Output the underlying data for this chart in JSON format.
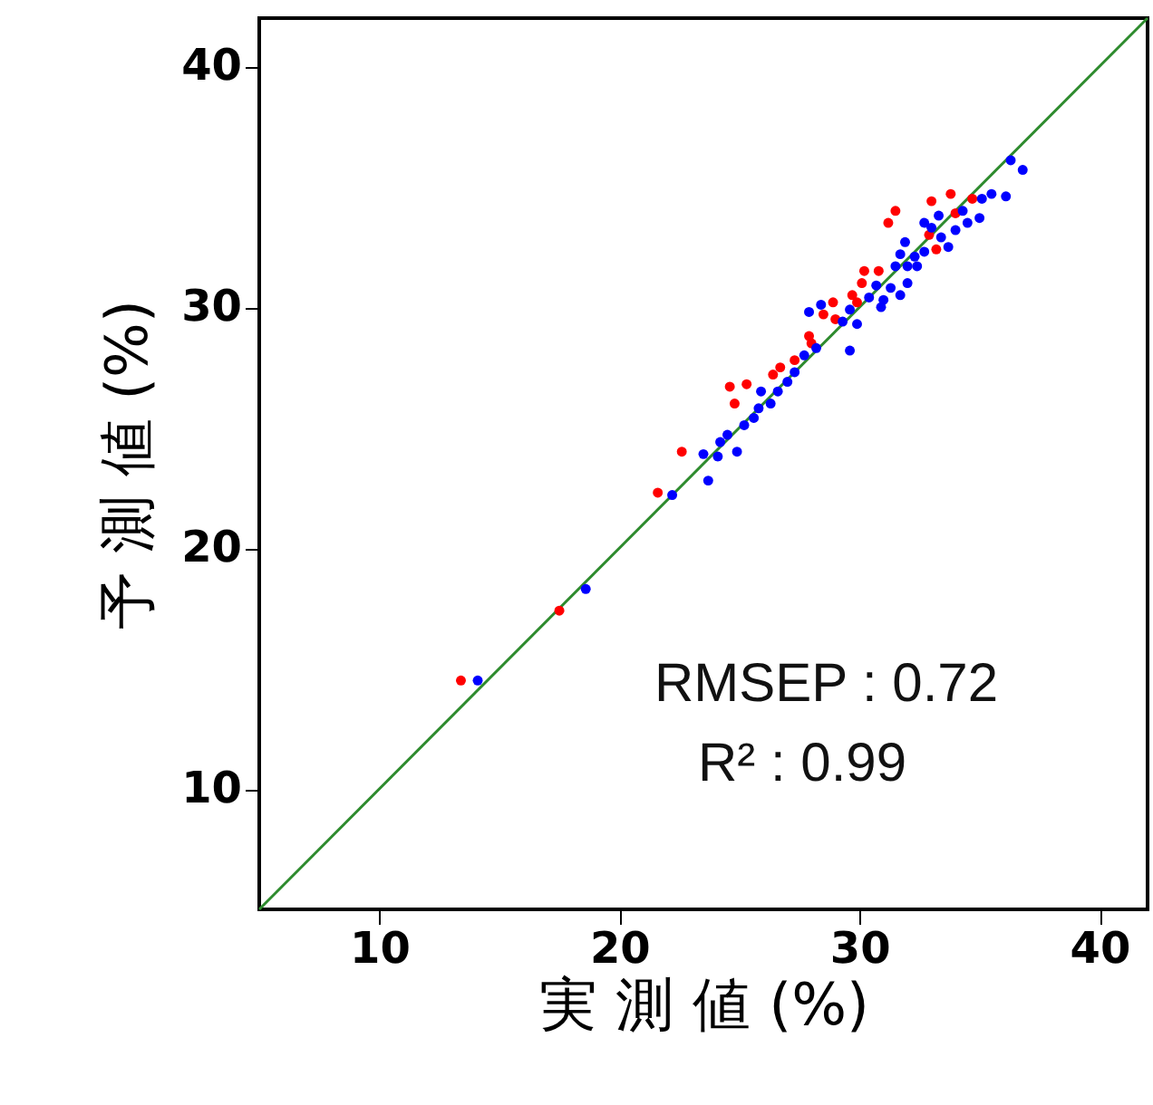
{
  "chart_data": {
    "type": "scatter",
    "xlabel": "実 測 値 (%)",
    "ylabel": "予 測 値 (%)",
    "xlim": [
      5,
      42
    ],
    "ylim": [
      5,
      42
    ],
    "xticks": [
      10,
      20,
      30,
      40
    ],
    "yticks": [
      10,
      20,
      30,
      40
    ],
    "grid": false,
    "marker": "circle",
    "annotations": [
      "RMSEP : 0.72",
      "R² : 0.99"
    ],
    "series": [
      {
        "type": "line",
        "marker": "none",
        "color": "#2e8b2e",
        "x": [
          5,
          42
        ],
        "values": [
          5,
          42
        ]
      },
      {
        "color": "#ff0000",
        "x": [
          13.4,
          17.5,
          21.6,
          22.6,
          24.6,
          24.8,
          25.3,
          26.4,
          26.7,
          27.3,
          27.9,
          28.0,
          28.5,
          28.9,
          29.0,
          29.7,
          29.9,
          30.1,
          30.2,
          30.8,
          31.2,
          31.5,
          32.9,
          33.0,
          33.2,
          33.8,
          34.0,
          34.7
        ],
        "values": [
          14.5,
          17.4,
          22.3,
          24.0,
          26.7,
          26.0,
          26.8,
          27.2,
          27.5,
          27.8,
          28.8,
          28.5,
          29.7,
          30.2,
          29.5,
          30.5,
          30.2,
          31.0,
          31.5,
          31.5,
          33.5,
          34.0,
          33.0,
          34.4,
          32.4,
          34.7,
          33.9,
          34.5
        ]
      },
      {
        "color": "#0000ff",
        "x": [
          14.1,
          18.6,
          22.2,
          23.7,
          23.5,
          24.1,
          24.2,
          24.5,
          24.9,
          25.2,
          25.6,
          25.8,
          25.9,
          26.3,
          26.6,
          27.0,
          27.3,
          27.7,
          28.2,
          27.9,
          28.4,
          29.6,
          29.3,
          29.9,
          29.6,
          30.4,
          30.7,
          30.9,
          31.0,
          31.3,
          31.7,
          31.5,
          31.7,
          31.9,
          32.0,
          32.0,
          32.3,
          32.4,
          32.7,
          32.7,
          33.0,
          33.3,
          33.4,
          33.7,
          34.0,
          34.3,
          34.5,
          35.0,
          35.1,
          35.5,
          36.1,
          36.3,
          36.8
        ],
        "values": [
          14.5,
          18.3,
          22.2,
          22.8,
          23.9,
          23.8,
          24.4,
          24.7,
          24.0,
          25.1,
          25.4,
          25.8,
          26.5,
          26.0,
          26.5,
          26.9,
          27.3,
          28.0,
          28.3,
          29.8,
          30.1,
          28.2,
          29.4,
          29.3,
          29.9,
          30.4,
          30.9,
          30.0,
          30.3,
          30.8,
          30.5,
          31.7,
          32.2,
          32.7,
          31.0,
          31.7,
          32.1,
          31.7,
          32.3,
          33.5,
          33.3,
          33.8,
          32.9,
          32.5,
          33.2,
          34.0,
          33.5,
          33.7,
          34.5,
          34.7,
          34.6,
          36.1,
          35.7
        ]
      }
    ]
  }
}
